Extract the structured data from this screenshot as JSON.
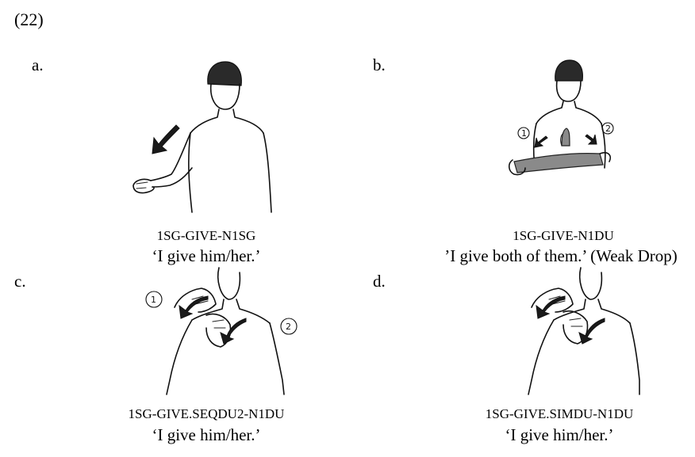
{
  "example_number": "(22)",
  "panels": [
    {
      "letter": "a.",
      "gloss": "1SG-GIVE-N1SG",
      "translation": "‘I give him/her.’"
    },
    {
      "letter": "b.",
      "gloss": "1SG-GIVE-N1DU",
      "translation": "’I give both of them.’ (Weak Drop)",
      "markers": [
        "1",
        "2"
      ]
    },
    {
      "letter": "c.",
      "gloss": "1SG-GIVE.SEQDU2-N1DU",
      "translation": "‘I give him/her.’",
      "markers": [
        "1",
        "2"
      ]
    },
    {
      "letter": "d.",
      "gloss": "1SG-GIVE.SIMDU-N1DU",
      "translation": "‘I give him/her.’"
    }
  ]
}
